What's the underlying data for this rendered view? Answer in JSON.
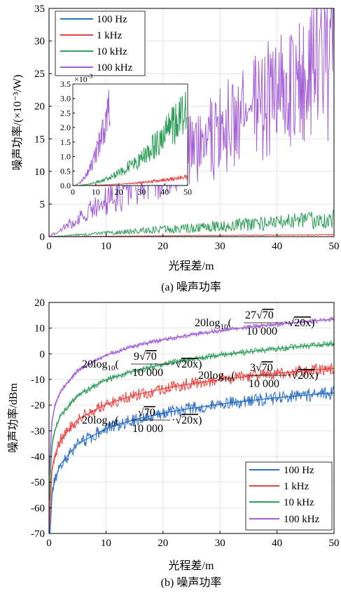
{
  "chart_data": [
    {
      "type": "line",
      "panel": "(a)",
      "caption": "(a)  噪声功率",
      "xlabel": "光程差/m",
      "ylabel": "噪声功率/(×10⁻³/W)",
      "xlim": [
        0,
        50
      ],
      "ylim": [
        0,
        35
      ],
      "xticks": [
        "0",
        "10",
        "20",
        "30",
        "40",
        "50"
      ],
      "yticks": [
        "0",
        "5",
        "10",
        "15",
        "20",
        "25",
        "30",
        "35"
      ],
      "legend_position": "top-left",
      "x": [
        0,
        5,
        10,
        15,
        20,
        25,
        30,
        35,
        40,
        45,
        50
      ],
      "series": [
        {
          "name": "100 Hz",
          "color": "#2c6fc4",
          "values": [
            0,
            0.0003,
            0.0006,
            0.0009,
            0.0012,
            0.0015,
            0.0018,
            0.0021,
            0.0024,
            0.0027,
            0.003
          ]
        },
        {
          "name": "1 kHz",
          "color": "#e8433f",
          "values": [
            0,
            0.03,
            0.06,
            0.09,
            0.12,
            0.15,
            0.18,
            0.21,
            0.24,
            0.27,
            0.3
          ]
        },
        {
          "name": "10 kHz",
          "color": "#2e9e5a",
          "values": [
            0,
            0.27,
            0.54,
            0.81,
            1.08,
            1.35,
            1.62,
            1.89,
            2.16,
            2.43,
            2.7
          ]
        },
        {
          "name": "100 kHz",
          "color": "#a45fd6",
          "values": [
            0,
            2.7,
            5.4,
            8.1,
            10.8,
            13.5,
            16.2,
            18.9,
            21.6,
            24.3,
            27.0
          ]
        }
      ],
      "inset": {
        "exponent_label": "×10",
        "exponent_power": "-3",
        "xlim": [
          0,
          50
        ],
        "ylim": [
          0,
          3.5
        ],
        "xticks": [
          "0",
          "10",
          "20",
          "30",
          "40",
          "50"
        ],
        "yticks": [
          "0.0",
          "0.5",
          "1.0",
          "1.5",
          "2.0",
          "2.5",
          "3.0",
          "3.5"
        ]
      }
    },
    {
      "type": "line",
      "panel": "(b)",
      "caption": "(b)  噪声功率",
      "xlabel": "光程差/m",
      "ylabel": "噪声功率/dBm",
      "xlim": [
        0,
        50
      ],
      "ylim": [
        -70,
        20
      ],
      "xticks": [
        "0",
        "10",
        "20",
        "30",
        "40",
        "50"
      ],
      "yticks": [
        "20",
        "10",
        "0",
        "-10",
        "-20",
        "-30",
        "-40",
        "-50",
        "-60",
        "-70"
      ],
      "legend_position": "bottom-right",
      "x": [
        0.05,
        0.5,
        1,
        2,
        5,
        10,
        15,
        20,
        25,
        30,
        35,
        40,
        45,
        50
      ],
      "series": [
        {
          "name": "100 Hz",
          "color": "#2c6fc4",
          "values": [
            -65.7,
            -45.7,
            -39.6,
            -33.6,
            -25.7,
            -19.6,
            -16.1,
            -13.6,
            -11.7,
            -10.1,
            -8.8,
            -7.6,
            -6.6,
            -5.7
          ]
        },
        {
          "name": "1 kHz",
          "color": "#e8433f",
          "values": [
            -56.2,
            -36.1,
            -30.1,
            -24.1,
            -16.1,
            -10.1,
            -6.6,
            -4.1,
            -2.1,
            -0.6,
            0.7,
            1.9,
            2.9,
            3.8
          ]
        },
        {
          "name": "10 kHz",
          "color": "#2e9e5a",
          "values": [
            -46.6,
            -26.6,
            -20.6,
            -14.6,
            -6.6,
            -0.6,
            2.9,
            5.4,
            7.4,
            9.0,
            10.3,
            11.5,
            12.5,
            13.4
          ]
        },
        {
          "name": "100 kHz",
          "color": "#a45fd6",
          "values": [
            -37.1,
            -17.1,
            -11.1,
            -5.1,
            2.9,
            9.0,
            12.5,
            15.0,
            17.0,
            18.5,
            19.9,
            21.0,
            22.0,
            23.0
          ]
        }
      ],
      "annotations": [
        {
          "prefix": "20log",
          "sub": "10",
          "coef": "27",
          "root": "70",
          "denominator": "10 000",
          "tail": "20x"
        },
        {
          "prefix": "20log",
          "sub": "10",
          "coef": "9",
          "root": "70",
          "denominator": "10 000",
          "tail": "20x"
        },
        {
          "prefix": "20log",
          "sub": "10",
          "coef": "3",
          "root": "70",
          "denominator": "10 000",
          "tail": "20x"
        },
        {
          "prefix": "20log",
          "sub": "10",
          "coef": "",
          "root": "70",
          "denominator": "10 000",
          "tail": "20x"
        }
      ]
    }
  ]
}
